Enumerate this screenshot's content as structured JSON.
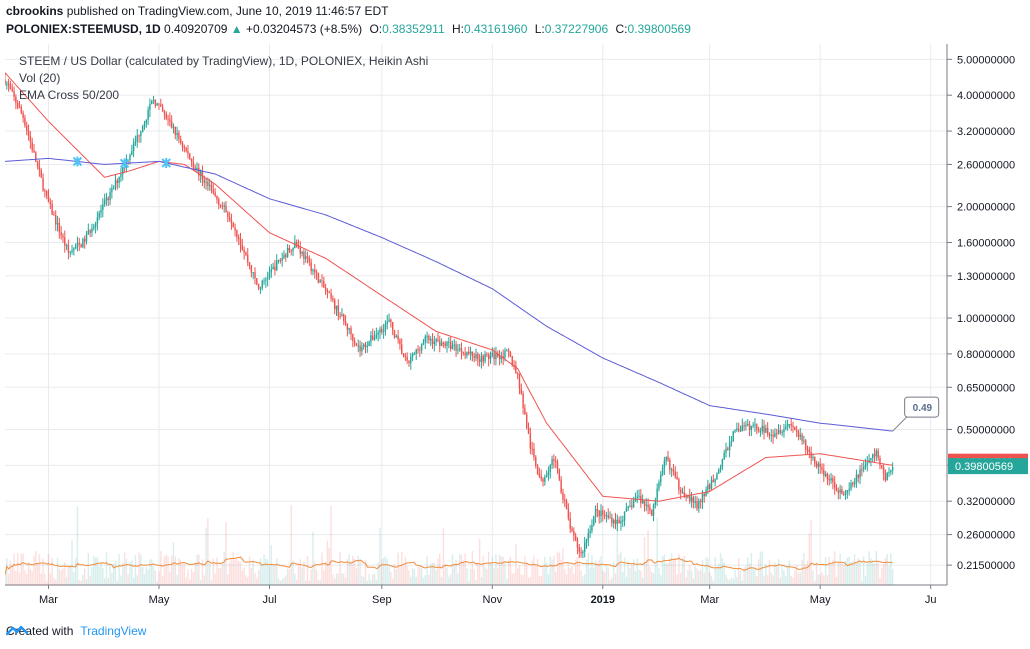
{
  "header": {
    "user": "cbrookins",
    "published": "published on TradingView.com, June 10, 2019 11:46:57 EDT",
    "symbol": "POLONIEX:STEEMUSD, 1D",
    "last": "0.40920709",
    "change": "+0.03204573 (+8.5%)",
    "o_label": "O:",
    "o": "0.38352911",
    "h_label": "H:",
    "h": "0.43161960",
    "l_label": "L:",
    "l": "0.37227906",
    "c_label": "C:",
    "c": "0.39800569"
  },
  "legend": {
    "title": "STEEM / US Dollar (calculated by TradingView), 1D, POLONIEX, Heikin Ashi",
    "vol": "Vol (20)",
    "ema": "EMA Cross 50/200"
  },
  "footer": {
    "created": "Created with",
    "brand": "TradingView"
  },
  "colors": {
    "up": "#26a69a",
    "down": "#ef5350",
    "ema50": "#ef5350",
    "ema200": "#5b5bd6",
    "vol_ma": "#ef8c39",
    "grid": "#e9ebef",
    "axis_text": "#131722",
    "cross": "#4fc3f7"
  },
  "chart_data": {
    "type": "candlestick",
    "scale": "log",
    "y_ticks": [
      "5.00000000",
      "4.00000000",
      "3.20000000",
      "2.60000000",
      "2.00000000",
      "1.60000000",
      "1.30000000",
      "1.00000000",
      "0.80000000",
      "0.65000000",
      "0.50000000",
      "0.40000000",
      "0.32000000",
      "0.26000000",
      "0.21500000"
    ],
    "y_tick_values": [
      5.0,
      4.0,
      3.2,
      2.6,
      2.0,
      1.6,
      1.3,
      1.0,
      0.8,
      0.65,
      0.5,
      0.4,
      0.32,
      0.26,
      0.215
    ],
    "y_range": [
      0.19,
      5.5
    ],
    "x_ticks": [
      "Mar",
      "May",
      "Jul",
      "Sep",
      "Nov",
      "2019",
      "Mar",
      "May",
      "Ju"
    ],
    "x_tick_dates": [
      "2018-03-01",
      "2018-05-01",
      "2018-07-01",
      "2018-09-01",
      "2018-11-01",
      "2019-01-01",
      "2019-03-01",
      "2019-05-01",
      "2019-07-01"
    ],
    "x_range": [
      "2018-02-05",
      "2019-07-10"
    ],
    "price_key": [
      [
        "2018-02-05",
        4.4
      ],
      [
        "2018-02-15",
        3.5
      ],
      [
        "2018-02-28",
        2.1
      ],
      [
        "2018-03-12",
        1.5
      ],
      [
        "2018-03-20",
        1.6
      ],
      [
        "2018-04-05",
        2.2
      ],
      [
        "2018-04-18",
        3.0
      ],
      [
        "2018-04-28",
        3.9
      ],
      [
        "2018-05-08",
        3.3
      ],
      [
        "2018-05-20",
        2.6
      ],
      [
        "2018-05-30",
        2.2
      ],
      [
        "2018-06-10",
        1.85
      ],
      [
        "2018-06-25",
        1.2
      ],
      [
        "2018-07-05",
        1.4
      ],
      [
        "2018-07-15",
        1.6
      ],
      [
        "2018-07-25",
        1.35
      ],
      [
        "2018-08-10",
        1.0
      ],
      [
        "2018-08-20",
        0.82
      ],
      [
        "2018-09-05",
        0.98
      ],
      [
        "2018-09-15",
        0.75
      ],
      [
        "2018-09-25",
        0.88
      ],
      [
        "2018-10-10",
        0.84
      ],
      [
        "2018-10-25",
        0.78
      ],
      [
        "2018-11-10",
        0.8
      ],
      [
        "2018-11-15",
        0.7
      ],
      [
        "2018-11-22",
        0.45
      ],
      [
        "2018-11-28",
        0.36
      ],
      [
        "2018-12-05",
        0.42
      ],
      [
        "2018-12-15",
        0.26
      ],
      [
        "2018-12-20",
        0.23
      ],
      [
        "2018-12-28",
        0.3
      ],
      [
        "2019-01-10",
        0.28
      ],
      [
        "2019-01-20",
        0.33
      ],
      [
        "2019-01-28",
        0.3
      ],
      [
        "2019-02-05",
        0.42
      ],
      [
        "2019-02-12",
        0.35
      ],
      [
        "2019-02-22",
        0.31
      ],
      [
        "2019-03-05",
        0.38
      ],
      [
        "2019-03-15",
        0.5
      ],
      [
        "2019-03-25",
        0.51
      ],
      [
        "2019-04-05",
        0.49
      ],
      [
        "2019-04-15",
        0.52
      ],
      [
        "2019-04-25",
        0.43
      ],
      [
        "2019-05-05",
        0.37
      ],
      [
        "2019-05-15",
        0.33
      ],
      [
        "2019-05-25",
        0.4
      ],
      [
        "2019-06-01",
        0.43
      ],
      [
        "2019-06-06",
        0.37
      ],
      [
        "2019-06-10",
        0.398
      ]
    ],
    "ema50_key": [
      [
        "2018-02-05",
        4.6
      ],
      [
        "2018-03-01",
        3.4
      ],
      [
        "2018-04-01",
        2.4
      ],
      [
        "2018-04-15",
        2.5
      ],
      [
        "2018-05-01",
        2.65
      ],
      [
        "2018-05-15",
        2.6
      ],
      [
        "2018-06-01",
        2.3
      ],
      [
        "2018-07-01",
        1.7
      ],
      [
        "2018-08-01",
        1.45
      ],
      [
        "2018-09-01",
        1.15
      ],
      [
        "2018-10-01",
        0.92
      ],
      [
        "2018-11-01",
        0.82
      ],
      [
        "2018-11-15",
        0.73
      ],
      [
        "2018-12-01",
        0.52
      ],
      [
        "2019-01-01",
        0.33
      ],
      [
        "2019-02-01",
        0.32
      ],
      [
        "2019-03-01",
        0.34
      ],
      [
        "2019-04-01",
        0.42
      ],
      [
        "2019-05-01",
        0.43
      ],
      [
        "2019-06-10",
        0.4
      ]
    ],
    "ema200_key": [
      [
        "2018-02-05",
        2.65
      ],
      [
        "2018-03-01",
        2.7
      ],
      [
        "2018-04-01",
        2.6
      ],
      [
        "2018-05-01",
        2.65
      ],
      [
        "2018-06-01",
        2.45
      ],
      [
        "2018-07-01",
        2.1
      ],
      [
        "2018-08-01",
        1.9
      ],
      [
        "2018-09-01",
        1.65
      ],
      [
        "2018-10-01",
        1.42
      ],
      [
        "2018-11-01",
        1.2
      ],
      [
        "2018-12-01",
        0.95
      ],
      [
        "2019-01-01",
        0.78
      ],
      [
        "2019-02-01",
        0.67
      ],
      [
        "2019-03-01",
        0.58
      ],
      [
        "2019-04-01",
        0.55
      ],
      [
        "2019-05-01",
        0.52
      ],
      [
        "2019-06-10",
        0.495
      ]
    ],
    "cross_dates": [
      "2018-03-17",
      "2018-04-12",
      "2018-05-05"
    ],
    "labels": {
      "last_price": "0.40920709",
      "close_price": "0.39800569",
      "ema200_value": "0.49"
    }
  }
}
